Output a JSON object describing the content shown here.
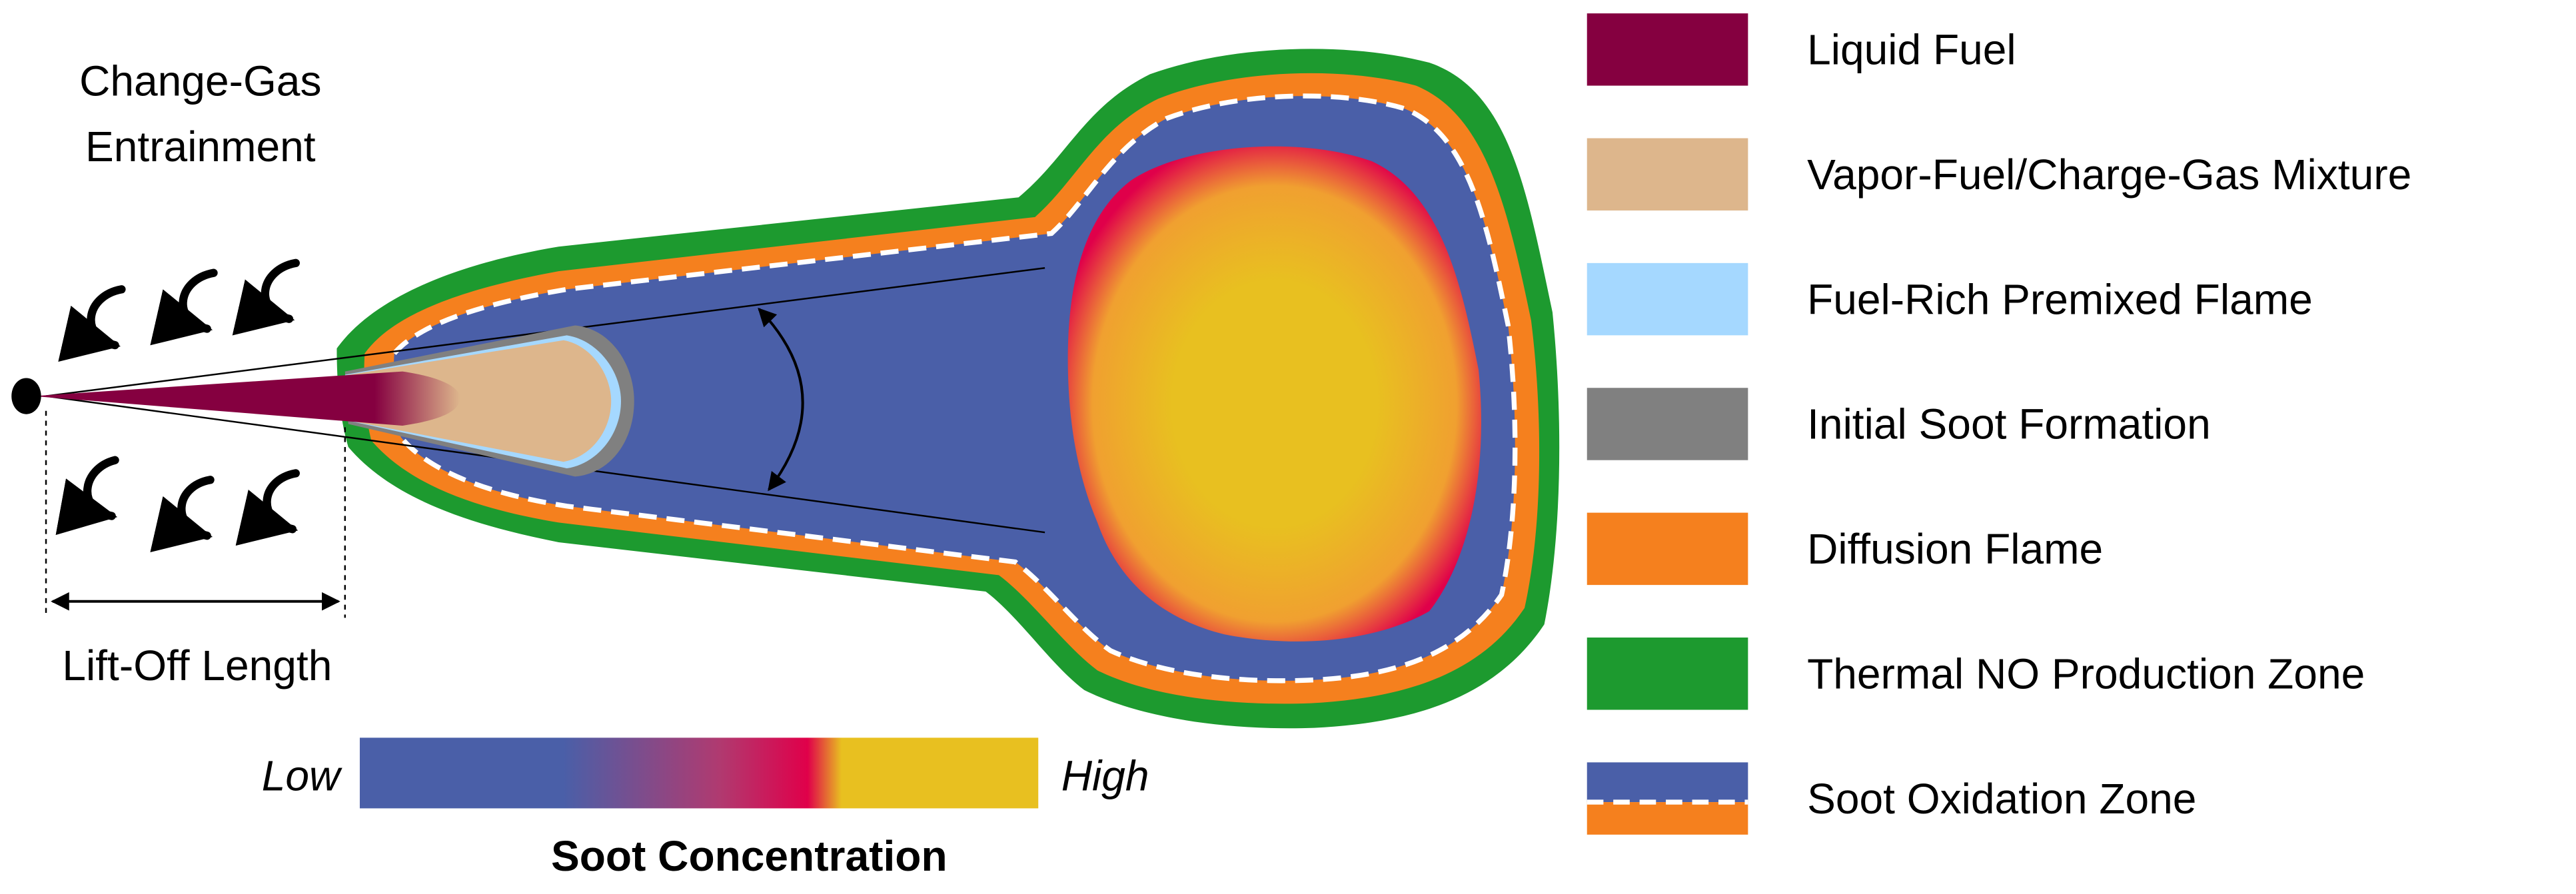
{
  "labels": {
    "entrainment_line1": "Change-Gas",
    "entrainment_line2": "Entrainment",
    "liftoff": "Lift-Off Length",
    "colorbar_low": "Low",
    "colorbar_high": "High",
    "colorbar_title": "Soot Concentration"
  },
  "legend": [
    {
      "label": "Liquid Fuel",
      "color": "#850040"
    },
    {
      "label": "Vapor-Fuel/Charge-Gas Mixture",
      "color": "#DDB68C"
    },
    {
      "label": "Fuel-Rich Premixed Flame",
      "color": "#A5D8FF"
    },
    {
      "label": "Initial Soot Formation",
      "color": "#808080"
    },
    {
      "label": "Diffusion Flame",
      "color": "#F5801E"
    },
    {
      "label": "Thermal NO Production Zone",
      "color": "#1D9A2F"
    },
    {
      "label": "Soot Oxidation Zone",
      "color": "#4A5FA8"
    }
  ],
  "colors": {
    "soot_low": "#4A5FA8",
    "soot_mid": "#E0004A",
    "soot_high": "#E8C020",
    "oxidation_dash": "#ffffff",
    "diffusion": "#F5801E",
    "thermal_no": "#1D9A2F"
  }
}
